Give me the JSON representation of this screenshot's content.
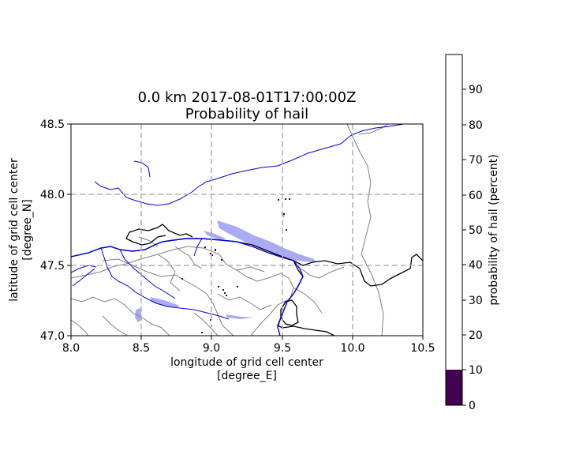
{
  "title_line1": "0.0 km 2017-08-01T17:00:00Z",
  "title_line2": "Probability of hail",
  "xlabel_line1": "longitude of grid cell center",
  "xlabel_line2": "[degree_E]",
  "ylabel_line1": "latitude of grid cell center",
  "ylabel_line2": "[degree_N]",
  "colorbar_label": "probability of hail (percent)",
  "x_ticks": [
    "8.0",
    "8.5",
    "9.0",
    "9.5",
    "10.0",
    "10.5"
  ],
  "y_ticks": [
    "47.0",
    "47.5",
    "48.0",
    "48.5"
  ],
  "cbar_ticks": [
    "0",
    "10",
    "20",
    "30",
    "40",
    "50",
    "60",
    "70",
    "80",
    "90"
  ],
  "colors": {
    "river": "#0000dd",
    "lake_fill": "#aaaaf5",
    "border_national": "#000000",
    "border_regional": "#808080",
    "grid": "#b0b0b0",
    "cbar_low": "#440154",
    "cbar_high": "#ffffff"
  },
  "chart_data": {
    "type": "heatmap",
    "title": "0.0 km 2017-08-01T17:00:00Z\nProbability of hail",
    "xlabel": "longitude of grid cell center [degree_E]",
    "ylabel": "latitude of grid cell center [degree_N]",
    "xlim": [
      8.0,
      10.5
    ],
    "ylim": [
      47.0,
      48.5
    ],
    "x_gridlines": [
      8.5,
      9.0,
      9.5,
      10.0
    ],
    "y_gridlines": [
      47.5,
      48.0
    ],
    "grid": true,
    "colorbar": {
      "label": "probability of hail (percent)",
      "range": [
        0,
        100
      ],
      "ticks": [
        0,
        10,
        20,
        30,
        40,
        50,
        60,
        70,
        80,
        90
      ],
      "bins": [
        {
          "range": [
            0,
            10
          ],
          "color": "#440154"
        },
        {
          "range": [
            10,
            100
          ],
          "color": "#ffffff"
        }
      ]
    }
  }
}
